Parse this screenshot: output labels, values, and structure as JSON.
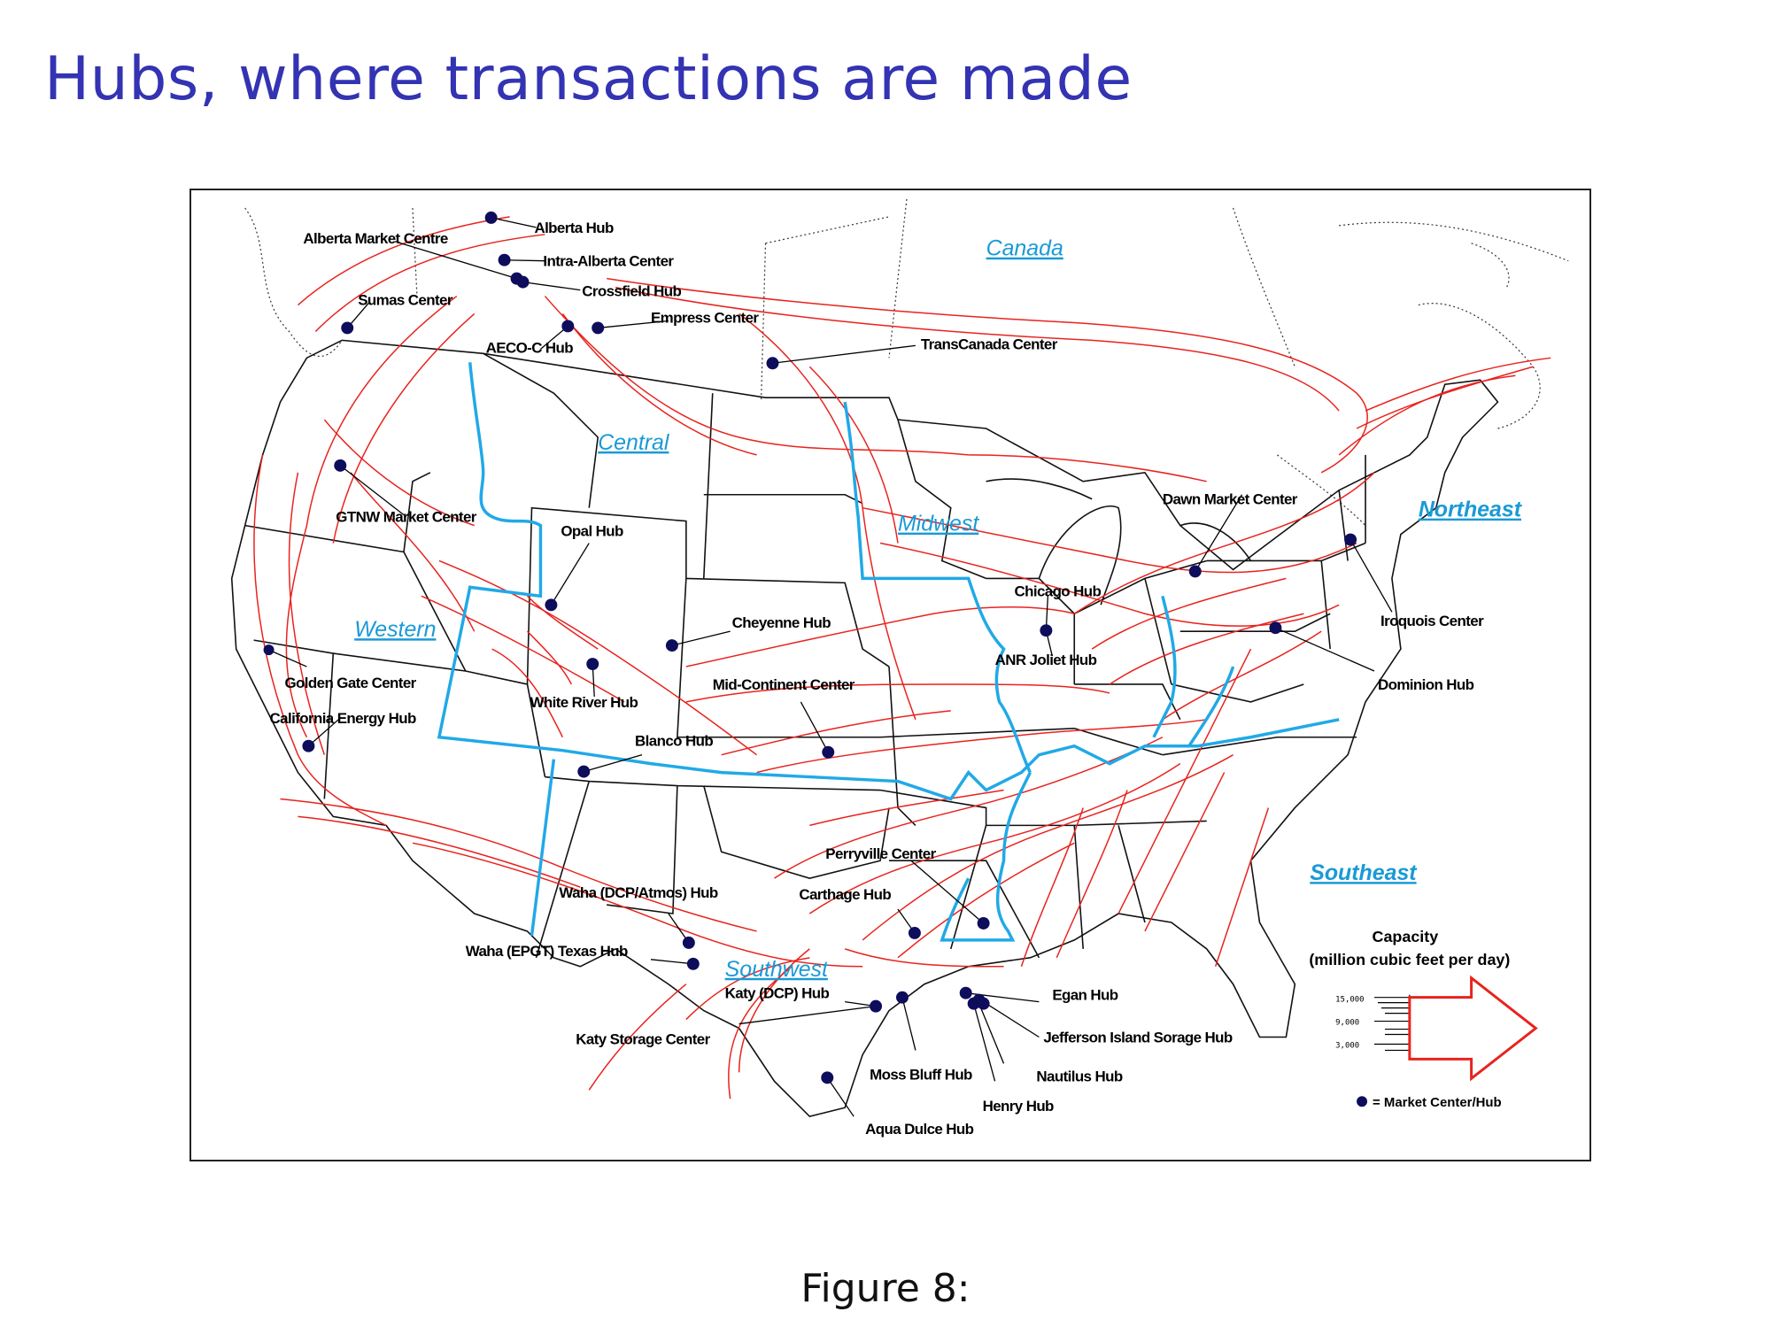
{
  "title": "Hubs, where transactions are made",
  "caption": "Figure 8:",
  "colors": {
    "title": "#3333b3",
    "pipeline": "#e8231e",
    "region_boundary": "#21a9e6",
    "hub_marker": "#0d0d5c"
  },
  "regions": [
    {
      "label": "Canada"
    },
    {
      "label": "Central"
    },
    {
      "label": "Midwest"
    },
    {
      "label": "Northeast"
    },
    {
      "label": "Western"
    },
    {
      "label": "Southeast"
    },
    {
      "label": "Southwest"
    }
  ],
  "hubs": [
    {
      "label": "Alberta Hub"
    },
    {
      "label": "Alberta Market Centre"
    },
    {
      "label": "Intra-Alberta Center"
    },
    {
      "label": "Crossfield Hub"
    },
    {
      "label": "Sumas Center"
    },
    {
      "label": "Empress Center"
    },
    {
      "label": "AECO-C Hub"
    },
    {
      "label": "TransCanada Center"
    },
    {
      "label": "GTNW Market Center"
    },
    {
      "label": "Opal Hub"
    },
    {
      "label": "Dawn Market Center"
    },
    {
      "label": "Chicago Hub"
    },
    {
      "label": "Iroquois Center"
    },
    {
      "label": "Cheyenne Hub"
    },
    {
      "label": "ANR Joliet Hub"
    },
    {
      "label": "Dominion Hub"
    },
    {
      "label": "Golden Gate Center"
    },
    {
      "label": "California Energy Hub"
    },
    {
      "label": "White River Hub"
    },
    {
      "label": "Mid-Continent Center"
    },
    {
      "label": "Blanco Hub"
    },
    {
      "label": "Perryville Center"
    },
    {
      "label": "Waha (DCP/Atmos) Hub"
    },
    {
      "label": "Carthage Hub"
    },
    {
      "label": "Waha (EPGT) Texas Hub"
    },
    {
      "label": "Katy (DCP) Hub"
    },
    {
      "label": "Egan Hub"
    },
    {
      "label": "Katy Storage Center"
    },
    {
      "label": "Jefferson Island Sorage Hub"
    },
    {
      "label": "Moss Bluff Hub"
    },
    {
      "label": "Nautilus Hub"
    },
    {
      "label": "Henry Hub"
    },
    {
      "label": "Aqua Dulce Hub"
    }
  ],
  "legend": {
    "capacity_title_line1": "Capacity",
    "capacity_title_line2": "(million cubic feet per day)",
    "ticks": [
      "15,000",
      "9,000",
      "3,000"
    ],
    "marker_text": "= Market Center/Hub"
  }
}
